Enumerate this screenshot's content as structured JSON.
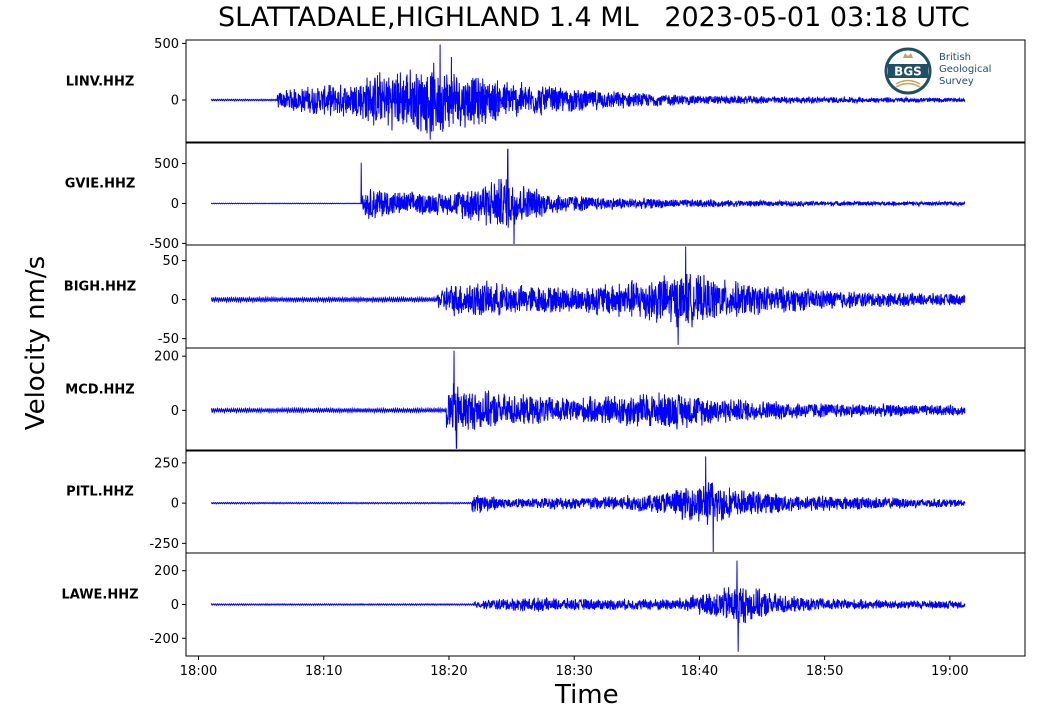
{
  "title": "SLATTADALE,HIGHLAND 1.4 ML   2023-05-01 03:18 UTC",
  "ylabel": "Velocity nm/s",
  "xlabel": "Time",
  "logo": {
    "text_lines": [
      "British",
      "Geological",
      "Survey"
    ],
    "badge": "BGS",
    "color": "#1f4f64"
  },
  "chart_data": {
    "type": "line",
    "trace_color": "#0000ff",
    "x_ticks": [
      "18:00",
      "18:10",
      "18:20",
      "18:30",
      "18:40",
      "18:50",
      "19:00"
    ],
    "x_tick_minutes": [
      0,
      10,
      20,
      30,
      40,
      50,
      60
    ],
    "xlim_minutes": [
      -1,
      66
    ],
    "trace_span_minutes": [
      1.0,
      61.2
    ],
    "panels": [
      {
        "station": "LINV.HHZ",
        "yticks": [
          500,
          0
        ],
        "ytick_labels": [
          "500",
          "0"
        ],
        "ylim": [
          -380,
          530
        ],
        "onset_minute": 6.3,
        "background_amplitude": 8,
        "envelope": [
          [
            6.3,
            80
          ],
          [
            8,
            120
          ],
          [
            12,
            160
          ],
          [
            14,
            260
          ],
          [
            17,
            300
          ],
          [
            19,
            340
          ],
          [
            21,
            260
          ],
          [
            25,
            180
          ],
          [
            30,
            110
          ],
          [
            35,
            70
          ],
          [
            40,
            45
          ],
          [
            50,
            30
          ],
          [
            61,
            20
          ]
        ],
        "peaks": [
          [
            19.3,
            490
          ],
          [
            18.5,
            -350
          ],
          [
            20.2,
            380
          ]
        ]
      },
      {
        "station": "GVIE.HHZ",
        "yticks": [
          500,
          0,
          -500
        ],
        "ytick_labels": [
          "500",
          "0",
          "-500"
        ],
        "ylim": [
          -520,
          770
        ],
        "onset_minute": 13.1,
        "background_amplitude": 5,
        "envelope": [
          [
            13.1,
            180
          ],
          [
            14,
            230
          ],
          [
            16,
            160
          ],
          [
            20,
            150
          ],
          [
            22,
            260
          ],
          [
            24.5,
            380
          ],
          [
            26,
            260
          ],
          [
            28,
            150
          ],
          [
            32,
            90
          ],
          [
            38,
            60
          ],
          [
            45,
            40
          ],
          [
            52,
            30
          ],
          [
            61,
            25
          ]
        ],
        "peaks": [
          [
            13.0,
            510
          ],
          [
            24.7,
            680
          ],
          [
            25.2,
            -520
          ]
        ]
      },
      {
        "station": "BIGH.HHZ",
        "yticks": [
          50,
          0,
          -50
        ],
        "ytick_labels": [
          "50",
          "0",
          "-50"
        ],
        "ylim": [
          -62,
          70
        ],
        "onset_minute": 19.0,
        "background_amplitude": 3,
        "envelope": [
          [
            19,
            10
          ],
          [
            20,
            22
          ],
          [
            22,
            26
          ],
          [
            26,
            20
          ],
          [
            30,
            18
          ],
          [
            34,
            26
          ],
          [
            37,
            34
          ],
          [
            39,
            38
          ],
          [
            41,
            30
          ],
          [
            45,
            20
          ],
          [
            50,
            14
          ],
          [
            55,
            10
          ],
          [
            61,
            8
          ]
        ],
        "peaks": [
          [
            38.9,
            68
          ],
          [
            38.3,
            -58
          ]
        ]
      },
      {
        "station": "MCD.HHZ",
        "yticks": [
          200,
          0
        ],
        "ytick_labels": [
          "200",
          "0"
        ],
        "ylim": [
          -150,
          230
        ],
        "onset_minute": 19.8,
        "background_amplitude": 8,
        "envelope": [
          [
            19.8,
            100
          ],
          [
            20.3,
            110
          ],
          [
            22,
            80
          ],
          [
            26,
            60
          ],
          [
            30,
            50
          ],
          [
            35,
            70
          ],
          [
            38,
            75
          ],
          [
            41,
            55
          ],
          [
            45,
            40
          ],
          [
            50,
            30
          ],
          [
            55,
            25
          ],
          [
            61,
            20
          ]
        ],
        "peaks": [
          [
            20.4,
            220
          ],
          [
            20.6,
            -140
          ]
        ]
      },
      {
        "station": "PITL.HHZ",
        "yticks": [
          250,
          0,
          -250
        ],
        "ytick_labels": [
          "250",
          "0",
          "-250"
        ],
        "ylim": [
          -310,
          330
        ],
        "onset_minute": 21.8,
        "background_amplitude": 5,
        "envelope": [
          [
            21.8,
            70
          ],
          [
            23,
            60
          ],
          [
            25,
            30
          ],
          [
            28,
            40
          ],
          [
            32,
            50
          ],
          [
            36,
            60
          ],
          [
            39,
            110
          ],
          [
            41,
            160
          ],
          [
            43,
            90
          ],
          [
            48,
            55
          ],
          [
            55,
            40
          ],
          [
            61,
            25
          ]
        ],
        "peaks": [
          [
            40.5,
            290
          ],
          [
            41.1,
            -310
          ]
        ]
      },
      {
        "station": "LAWE.HHZ",
        "yticks": [
          200,
          0,
          -200
        ],
        "ytick_labels": [
          "200",
          "0",
          "-200"
        ],
        "ylim": [
          -305,
          305
        ],
        "onset_minute": 22.0,
        "background_amplitude": 5,
        "envelope": [
          [
            22,
            20
          ],
          [
            24,
            40
          ],
          [
            27,
            45
          ],
          [
            30,
            38
          ],
          [
            35,
            35
          ],
          [
            38,
            40
          ],
          [
            41,
            80
          ],
          [
            43,
            140
          ],
          [
            45,
            90
          ],
          [
            48,
            45
          ],
          [
            54,
            30
          ],
          [
            61,
            25
          ]
        ],
        "peaks": [
          [
            43.0,
            260
          ],
          [
            43.1,
            -280
          ]
        ]
      }
    ]
  }
}
